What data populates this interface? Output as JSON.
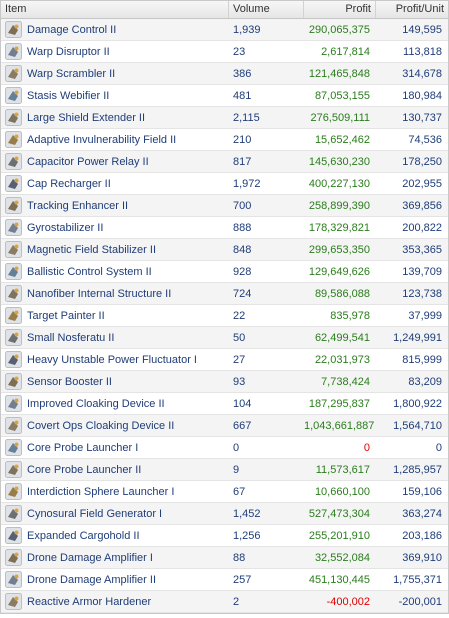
{
  "headers": {
    "item": "Item",
    "volume": "Volume",
    "profit": "Profit",
    "unit": "Profit/Unit"
  },
  "rows": [
    {
      "name": "Damage Control II",
      "volume": "1,939",
      "profit": "290,065,375",
      "unit": "149,595",
      "sign": "pos",
      "icon": "damage-control-icon"
    },
    {
      "name": "Warp Disruptor II",
      "volume": "23",
      "profit": "2,617,814",
      "unit": "113,818",
      "sign": "pos",
      "icon": "warp-disruptor-icon"
    },
    {
      "name": "Warp Scrambler II",
      "volume": "386",
      "profit": "121,465,848",
      "unit": "314,678",
      "sign": "pos",
      "icon": "warp-scrambler-icon"
    },
    {
      "name": "Stasis Webifier II",
      "volume": "481",
      "profit": "87,053,155",
      "unit": "180,984",
      "sign": "pos",
      "icon": "stasis-webifier-icon"
    },
    {
      "name": "Large Shield Extender II",
      "volume": "2,115",
      "profit": "276,509,111",
      "unit": "130,737",
      "sign": "pos",
      "icon": "shield-extender-icon"
    },
    {
      "name": "Adaptive Invulnerability Field II",
      "volume": "210",
      "profit": "15,652,462",
      "unit": "74,536",
      "sign": "pos",
      "icon": "invulnerability-field-icon"
    },
    {
      "name": "Capacitor Power Relay II",
      "volume": "817",
      "profit": "145,630,230",
      "unit": "178,250",
      "sign": "pos",
      "icon": "power-relay-icon"
    },
    {
      "name": "Cap Recharger II",
      "volume": "1,972",
      "profit": "400,227,130",
      "unit": "202,955",
      "sign": "pos",
      "icon": "cap-recharger-icon"
    },
    {
      "name": "Tracking Enhancer II",
      "volume": "700",
      "profit": "258,899,390",
      "unit": "369,856",
      "sign": "pos",
      "icon": "tracking-enhancer-icon"
    },
    {
      "name": "Gyrostabilizer II",
      "volume": "888",
      "profit": "178,329,821",
      "unit": "200,822",
      "sign": "pos",
      "icon": "gyrostabilizer-icon"
    },
    {
      "name": "Magnetic Field Stabilizer II",
      "volume": "848",
      "profit": "299,653,350",
      "unit": "353,365",
      "sign": "pos",
      "icon": "magnetic-stabilizer-icon"
    },
    {
      "name": "Ballistic Control System II",
      "volume": "928",
      "profit": "129,649,626",
      "unit": "139,709",
      "sign": "pos",
      "icon": "ballistic-control-icon"
    },
    {
      "name": "Nanofiber Internal Structure II",
      "volume": "724",
      "profit": "89,586,088",
      "unit": "123,738",
      "sign": "pos",
      "icon": "nanofiber-icon"
    },
    {
      "name": "Target Painter II",
      "volume": "22",
      "profit": "835,978",
      "unit": "37,999",
      "sign": "pos",
      "icon": "target-painter-icon"
    },
    {
      "name": "Small Nosferatu II",
      "volume": "50",
      "profit": "62,499,541",
      "unit": "1,249,991",
      "sign": "pos",
      "icon": "nosferatu-icon"
    },
    {
      "name": "Heavy Unstable Power Fluctuator I",
      "volume": "27",
      "profit": "22,031,973",
      "unit": "815,999",
      "sign": "pos",
      "icon": "power-fluctuator-icon"
    },
    {
      "name": "Sensor Booster II",
      "volume": "93",
      "profit": "7,738,424",
      "unit": "83,209",
      "sign": "pos",
      "icon": "sensor-booster-icon"
    },
    {
      "name": "Improved Cloaking Device II",
      "volume": "104",
      "profit": "187,295,837",
      "unit": "1,800,922",
      "sign": "pos",
      "icon": "cloaking-device-icon"
    },
    {
      "name": "Covert Ops Cloaking Device II",
      "volume": "667",
      "profit": "1,043,661,887",
      "unit": "1,564,710",
      "sign": "pos",
      "icon": "covert-cloak-icon"
    },
    {
      "name": "Core Probe Launcher I",
      "volume": "0",
      "profit": "0",
      "unit": "0",
      "sign": "zero",
      "icon": "probe-launcher-icon"
    },
    {
      "name": "Core Probe Launcher II",
      "volume": "9",
      "profit": "11,573,617",
      "unit": "1,285,957",
      "sign": "pos",
      "icon": "probe-launcher-icon"
    },
    {
      "name": "Interdiction Sphere Launcher I",
      "volume": "67",
      "profit": "10,660,100",
      "unit": "159,106",
      "sign": "pos",
      "icon": "sphere-launcher-icon"
    },
    {
      "name": "Cynosural Field Generator I",
      "volume": "1,452",
      "profit": "527,473,304",
      "unit": "363,274",
      "sign": "pos",
      "icon": "cyno-generator-icon"
    },
    {
      "name": "Expanded Cargohold II",
      "volume": "1,256",
      "profit": "255,201,910",
      "unit": "203,186",
      "sign": "pos",
      "icon": "cargohold-icon"
    },
    {
      "name": "Drone Damage Amplifier I",
      "volume": "88",
      "profit": "32,552,084",
      "unit": "369,910",
      "sign": "pos",
      "icon": "drone-amplifier-icon"
    },
    {
      "name": "Drone Damage Amplifier II",
      "volume": "257",
      "profit": "451,130,445",
      "unit": "1,755,371",
      "sign": "pos",
      "icon": "drone-amplifier-icon"
    },
    {
      "name": "Reactive Armor Hardener",
      "volume": "2",
      "profit": "-400,002",
      "unit": "-200,001",
      "sign": "neg",
      "icon": "armor-hardener-icon"
    }
  ]
}
